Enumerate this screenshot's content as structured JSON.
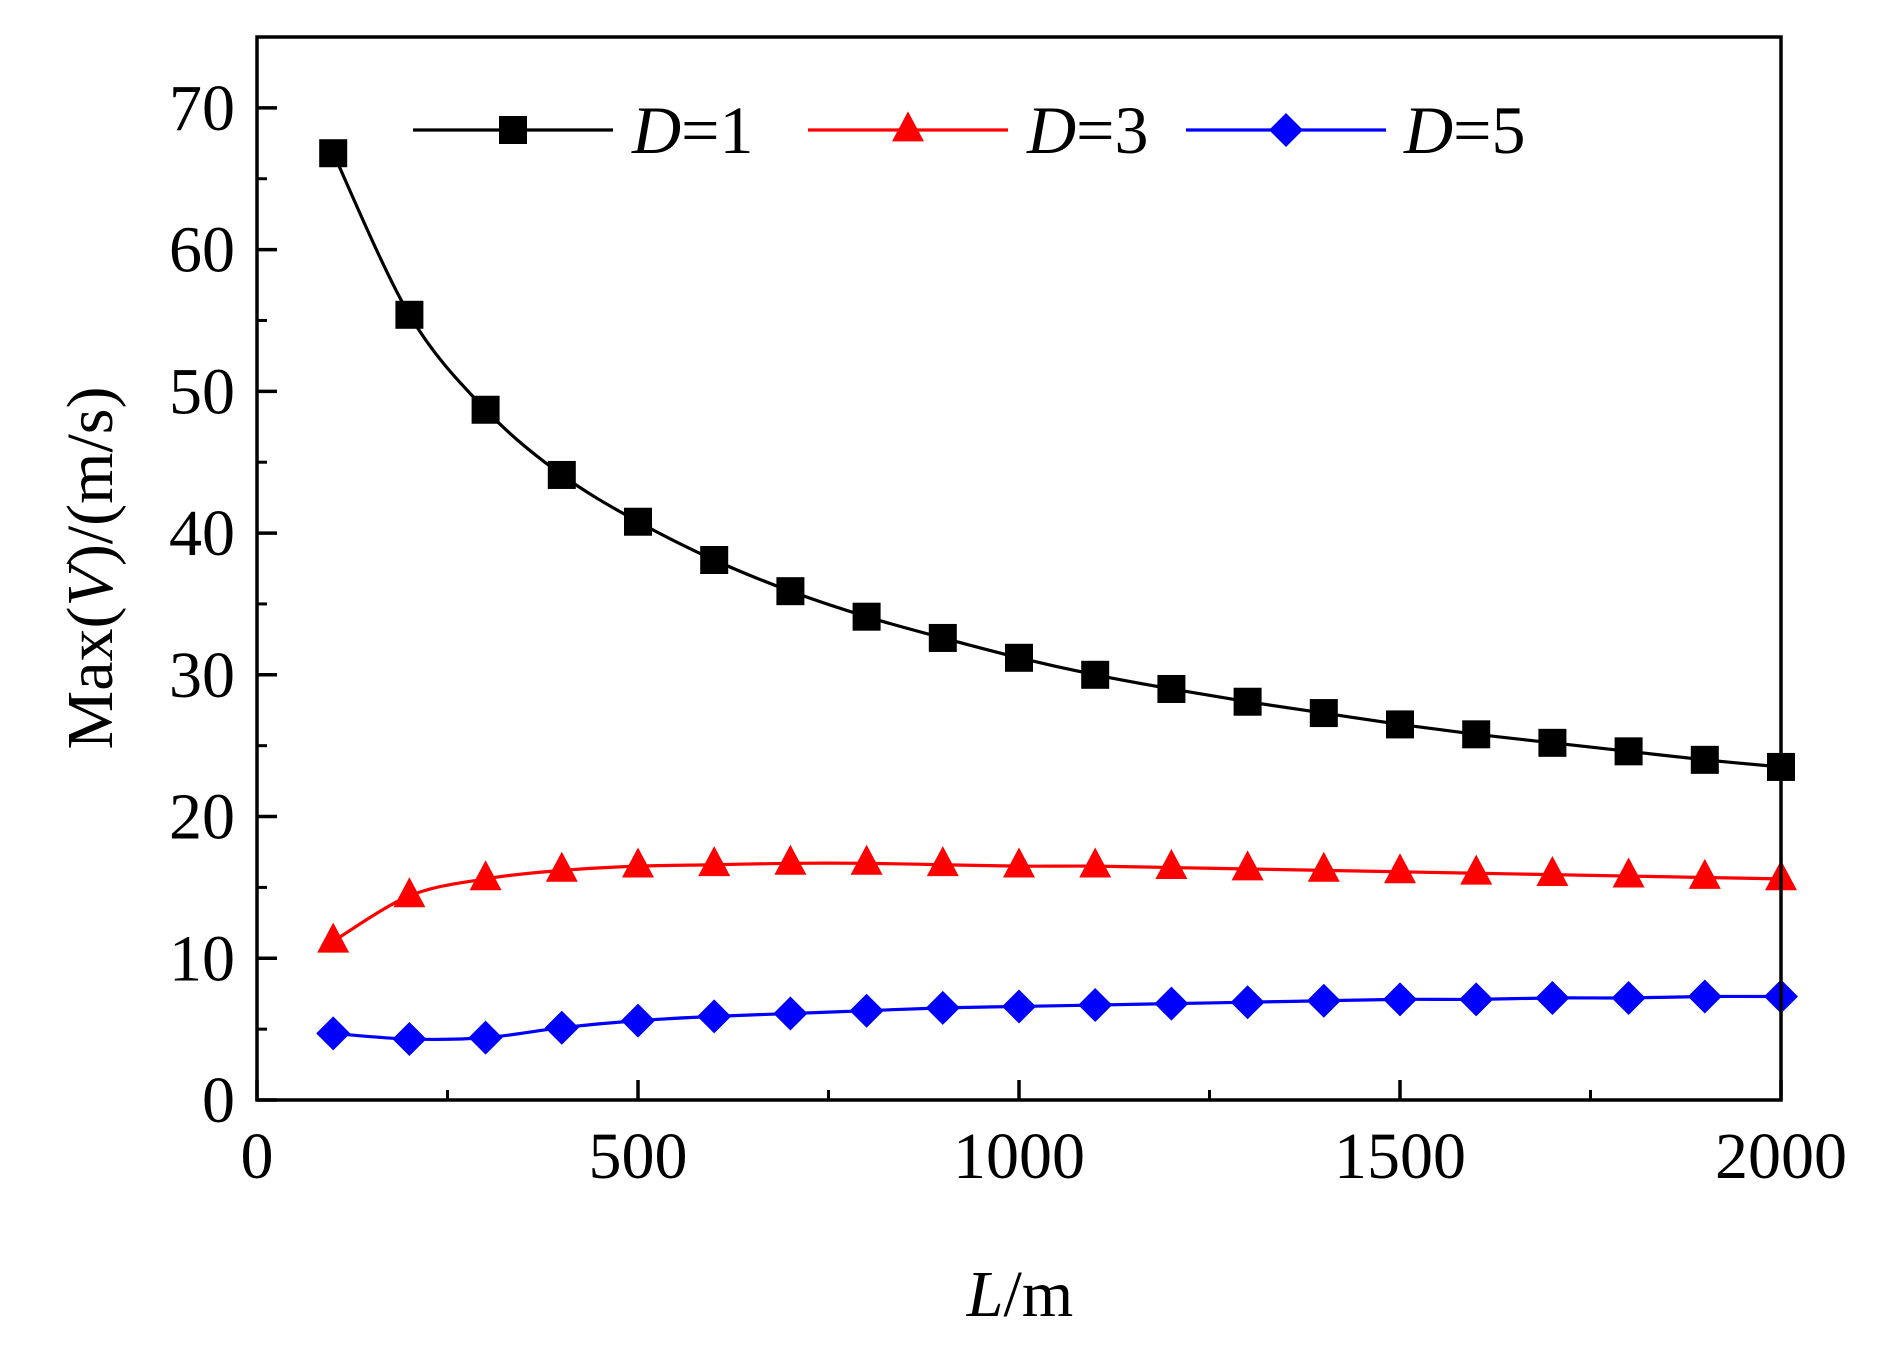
{
  "chart_data": {
    "type": "line",
    "title": "",
    "xlabel": {
      "var": "L",
      "unit": "/m"
    },
    "ylabel": {
      "prefix": "Max(",
      "var": "V",
      "suffix": ")/(m/s)"
    },
    "xlim": [
      0,
      2000
    ],
    "ylim": [
      0,
      75
    ],
    "xticks": [
      0,
      500,
      1000,
      1500,
      2000
    ],
    "yticks": [
      0,
      10,
      20,
      30,
      40,
      50,
      60,
      70
    ],
    "x_minor_step": 250,
    "y_minor_step": 5,
    "grid": false,
    "legend_position": "top",
    "x": [
      100,
      200,
      300,
      400,
      500,
      600,
      700,
      800,
      900,
      1000,
      1100,
      1200,
      1300,
      1400,
      1500,
      1600,
      1700,
      1800,
      1900,
      2000
    ],
    "series": [
      {
        "name": "D=1",
        "var": "D",
        "eq": "=1",
        "color": "#000000",
        "marker": "square",
        "values": [
          66.8,
          55.4,
          48.7,
          44.1,
          40.8,
          38.1,
          35.9,
          34.1,
          32.6,
          31.2,
          30.0,
          29.0,
          28.1,
          27.3,
          26.5,
          25.8,
          25.2,
          24.6,
          24.0,
          23.5
        ]
      },
      {
        "name": "D=3",
        "var": "D",
        "eq": "=3",
        "color": "#ff0000",
        "marker": "triangle",
        "values": [
          11.2,
          14.4,
          15.6,
          16.2,
          16.5,
          16.6,
          16.7,
          16.7,
          16.6,
          16.5,
          16.5,
          16.4,
          16.3,
          16.2,
          16.1,
          16.0,
          15.9,
          15.8,
          15.7,
          15.6
        ]
      },
      {
        "name": "D=5",
        "var": "D",
        "eq": "=5",
        "color": "#0000ff",
        "marker": "diamond",
        "values": [
          4.7,
          4.3,
          4.4,
          5.1,
          5.6,
          5.9,
          6.1,
          6.3,
          6.5,
          6.6,
          6.7,
          6.8,
          6.9,
          7.0,
          7.1,
          7.1,
          7.2,
          7.2,
          7.3,
          7.3
        ]
      }
    ]
  }
}
